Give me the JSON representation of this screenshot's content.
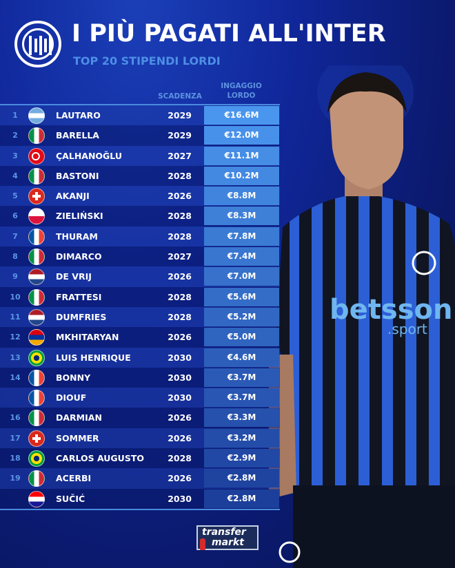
{
  "header": {
    "title": "I PIÙ PAGATI ALL'INTER",
    "subtitle": "TOP 20 STIPENDI LORDI"
  },
  "columns": {
    "expiry": "SCADENZA",
    "salary_line1": "INGAGGIO",
    "salary_line2": "LORDO"
  },
  "players": [
    {
      "rank": "1",
      "flag": "argentina",
      "name": "LAUTARO",
      "expiry": "2029",
      "salary": "€16.6M"
    },
    {
      "rank": "2",
      "flag": "italy",
      "name": "BARELLA",
      "expiry": "2029",
      "salary": "€12.0M"
    },
    {
      "rank": "3",
      "flag": "turkey",
      "name": "ÇALHANOĞLU",
      "expiry": "2027",
      "salary": "€11.1M"
    },
    {
      "rank": "4",
      "flag": "italy",
      "name": "BASTONI",
      "expiry": "2028",
      "salary": "€10.2M"
    },
    {
      "rank": "5",
      "flag": "switzerland",
      "name": "AKANJI",
      "expiry": "2026",
      "salary": "€8.8M"
    },
    {
      "rank": "6",
      "flag": "poland",
      "name": "ZIELIŃSKI",
      "expiry": "2028",
      "salary": "€8.3M"
    },
    {
      "rank": "7",
      "flag": "france",
      "name": "THURAM",
      "expiry": "2028",
      "salary": "€7.8M"
    },
    {
      "rank": "8",
      "flag": "italy",
      "name": "DIMARCO",
      "expiry": "2027",
      "salary": "€7.4M"
    },
    {
      "rank": "9",
      "flag": "netherlands",
      "name": "DE VRIJ",
      "expiry": "2026",
      "salary": "€7.0M"
    },
    {
      "rank": "10",
      "flag": "italy",
      "name": "FRATTESI",
      "expiry": "2028",
      "salary": "€5.6M"
    },
    {
      "rank": "11",
      "flag": "netherlands",
      "name": "DUMFRIES",
      "expiry": "2028",
      "salary": "€5.2M"
    },
    {
      "rank": "12",
      "flag": "armenia",
      "name": "MKHITARYAN",
      "expiry": "2026",
      "salary": "€5.0M"
    },
    {
      "rank": "13",
      "flag": "brazil",
      "name": "LUIS HENRIQUE",
      "expiry": "2030",
      "salary": "€4.6M"
    },
    {
      "rank": "14",
      "flag": "france",
      "name": "BONNY",
      "expiry": "2030",
      "salary": "€3.7M"
    },
    {
      "rank": "",
      "flag": "france",
      "name": "DIOUF",
      "expiry": "2030",
      "salary": "€3.7M"
    },
    {
      "rank": "16",
      "flag": "italy",
      "name": "DARMIAN",
      "expiry": "2026",
      "salary": "€3.3M"
    },
    {
      "rank": "17",
      "flag": "switzerland",
      "name": "SOMMER",
      "expiry": "2026",
      "salary": "€3.2M"
    },
    {
      "rank": "18",
      "flag": "brazil",
      "name": "CARLOS AUGUSTO",
      "expiry": "2028",
      "salary": "€2.9M"
    },
    {
      "rank": "19",
      "flag": "italy",
      "name": "ACERBI",
      "expiry": "2026",
      "salary": "€2.8M"
    },
    {
      "rank": "",
      "flag": "croatia",
      "name": "SUČIĆ",
      "expiry": "2030",
      "salary": "€2.8M"
    }
  ],
  "sponsor": {
    "shirt_text": "betsson",
    "shirt_sub": ".sport"
  },
  "source_logo": {
    "line1": "transfer",
    "line2": "markt"
  },
  "colors": {
    "accent": "#4d8fe6",
    "salary_top": "#4a96ee",
    "salary_bottom": "#1c3f9c"
  }
}
